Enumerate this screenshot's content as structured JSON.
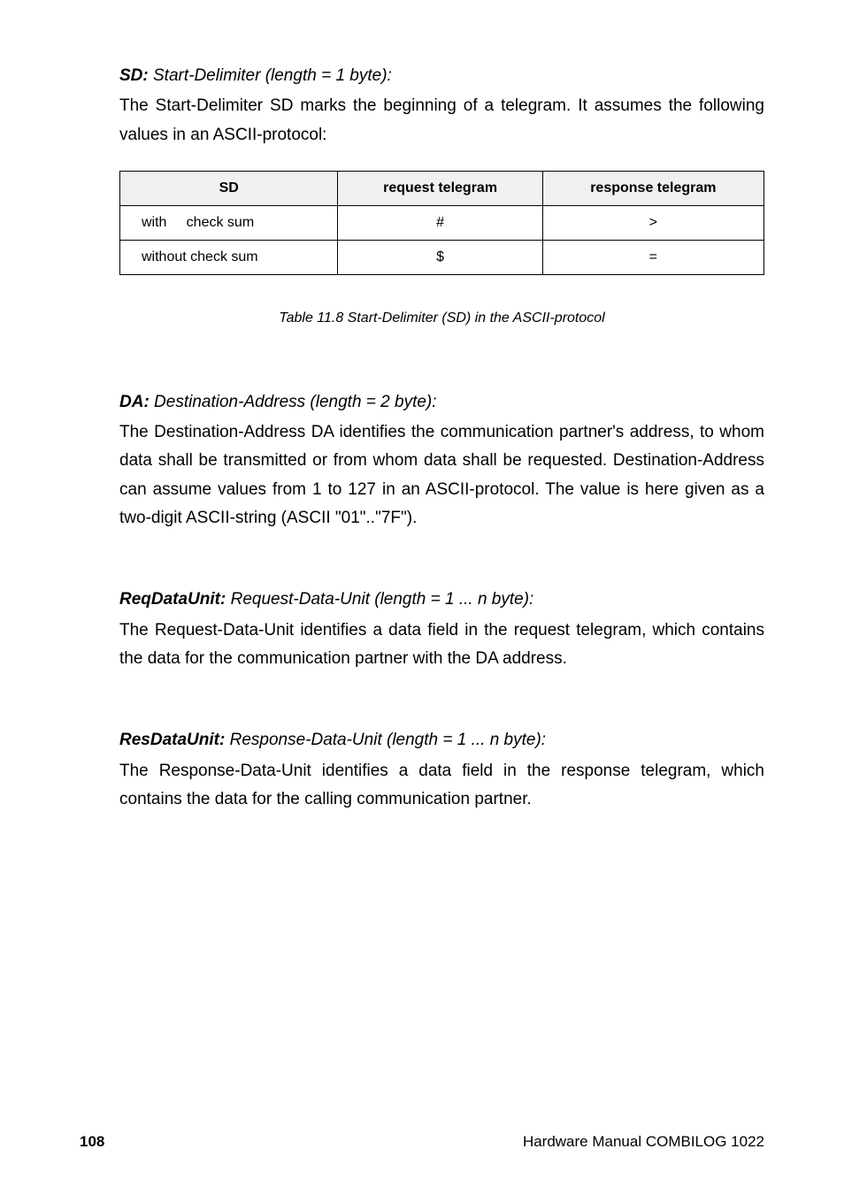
{
  "sd_section": {
    "heading_bold": "SD:",
    "heading_italic": " Start-Delimiter (length = 1 byte):",
    "body": "The Start-Delimiter SD marks the beginning of a telegram. It assumes the following values in an ASCII-protocol:"
  },
  "table": {
    "headers": [
      "SD",
      "request telegram",
      "response telegram"
    ],
    "rows": [
      [
        "with     check sum",
        "#",
        ">"
      ],
      [
        "without check sum",
        "$",
        "="
      ]
    ],
    "caption": "Table 11.8    Start-Delimiter (SD) in the ASCII-protocol",
    "header_bg": "#f0f0f0",
    "border_color": "#000000",
    "font_size": 16
  },
  "da_section": {
    "heading_bold": "DA:",
    "heading_italic": " Destination-Address (length = 2 byte):",
    "body": "The Destination-Address DA identifies the communication partner's address, to whom data shall be transmitted or from whom data shall be requested. Destination-Address can assume values from 1 to 127 in an ASCII-protocol. The value is here given as a two-digit ASCII-string (ASCII \"01\"..\"7F\")."
  },
  "reqdata_section": {
    "heading_bold": "ReqDataUnit:",
    "heading_italic": " Request-Data-Unit (length = 1 ... n byte):",
    "body": "The Request-Data-Unit identifies a data field in the request telegram, which contains the data for the communication partner with the DA address."
  },
  "resdata_section": {
    "heading_bold": "ResDataUnit:",
    "heading_italic": " Response-Data-Unit (length = 1 ... n byte):",
    "body": "The Response-Data-Unit identifies a data field in the response telegram, which contains the data for the calling communication partner."
  },
  "footer": {
    "page_number": "108",
    "text": "Hardware Manual COMBILOG 1022"
  },
  "typography": {
    "body_font_size": 19,
    "body_line_height": 1.7,
    "caption_font_size": 16,
    "footer_font_size": 17
  },
  "colors": {
    "background": "#ffffff",
    "text": "#000000",
    "table_header_bg": "#f0f0f0",
    "table_border": "#000000"
  }
}
